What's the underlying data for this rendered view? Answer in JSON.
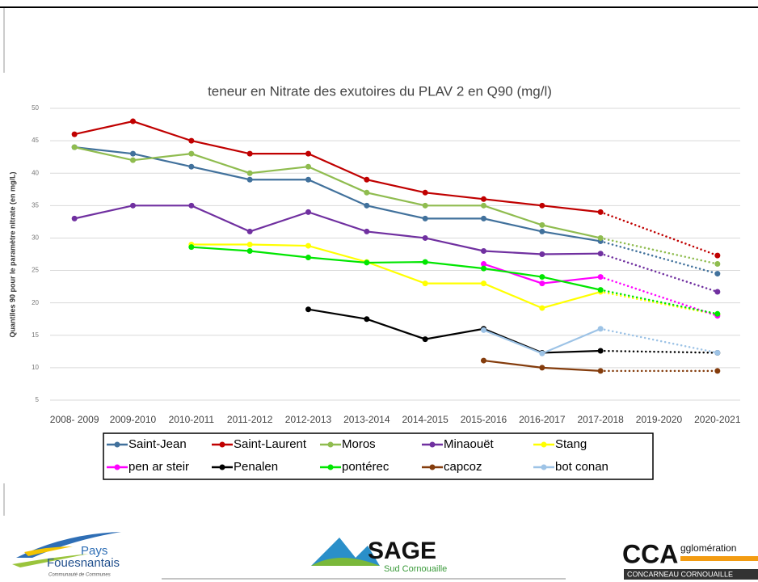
{
  "chart_data": {
    "type": "line",
    "title": "teneur en Nitrate des exutoires du PLAV 2 en Q90 (mg/l)",
    "y_label": "Quantiles 90 pour le paramètre nitrate (en mg/L)",
    "categories": [
      "2008- 2009",
      "2009-2010",
      "2010-2011",
      "2011-2012",
      "2012-2013",
      "2013-2014",
      "2014-2015",
      "2015-2016",
      "2016-2017",
      "2017-2018",
      "2019-2020",
      "2020-2021"
    ],
    "ylim": [
      5,
      50
    ],
    "yticks": [
      5,
      10,
      15,
      20,
      25,
      30,
      35,
      40,
      45,
      50
    ],
    "grid": true,
    "gap_line": "dotted",
    "series": [
      {
        "name": "Saint-Jean",
        "color": "#41719c",
        "values": [
          44,
          43,
          41,
          39,
          39,
          35,
          33,
          33,
          31,
          29.5,
          null,
          24.5
        ]
      },
      {
        "name": "Saint-Laurent",
        "color": "#c00000",
        "values": [
          46,
          48,
          45,
          43,
          43,
          39,
          37,
          36,
          35,
          34,
          null,
          27.3
        ]
      },
      {
        "name": "Moros",
        "color": "#8fbc4f",
        "values": [
          44,
          42,
          43,
          40,
          41,
          37,
          35,
          35,
          32,
          30,
          null,
          26
        ]
      },
      {
        "name": "Minaouët",
        "color": "#7030a0",
        "values": [
          33,
          35,
          35,
          31,
          34,
          31,
          30,
          28,
          27.5,
          27.6,
          null,
          21.7
        ]
      },
      {
        "name": "Stang",
        "color": "#ffff00",
        "values": [
          null,
          null,
          29,
          29,
          28.8,
          26.3,
          23,
          23,
          19.2,
          21.7,
          null,
          18.2
        ]
      },
      {
        "name": "pen ar steir",
        "color": "#ff00ff",
        "values": [
          null,
          null,
          null,
          null,
          null,
          null,
          null,
          26,
          23,
          24,
          null,
          18
        ]
      },
      {
        "name": "Penalen",
        "color": "#000000",
        "values": [
          null,
          null,
          null,
          null,
          19,
          17.5,
          14.4,
          16,
          12.3,
          12.6,
          null,
          12.3
        ]
      },
      {
        "name": "pontérec",
        "color": "#00e600",
        "values": [
          null,
          null,
          28.6,
          28,
          27,
          26.2,
          26.3,
          25.3,
          24,
          22,
          null,
          18.3
        ]
      },
      {
        "name": "capcoz",
        "color": "#843c0c",
        "values": [
          null,
          null,
          null,
          null,
          null,
          null,
          null,
          11.1,
          10,
          9.5,
          null,
          9.5
        ]
      },
      {
        "name": "bot conan",
        "color": "#9dc3e6",
        "values": [
          null,
          null,
          null,
          null,
          null,
          null,
          null,
          15.8,
          12.2,
          16,
          null,
          12.3
        ]
      }
    ]
  },
  "logos": {
    "left": [
      "Pays",
      "Fouesnantais",
      "Communauté de Communes"
    ],
    "center": [
      "SAGE",
      "Sud Cornouaille"
    ],
    "right": [
      "CCA",
      "gglomération",
      "CONCARNEAU CORNOUAILLE"
    ]
  }
}
